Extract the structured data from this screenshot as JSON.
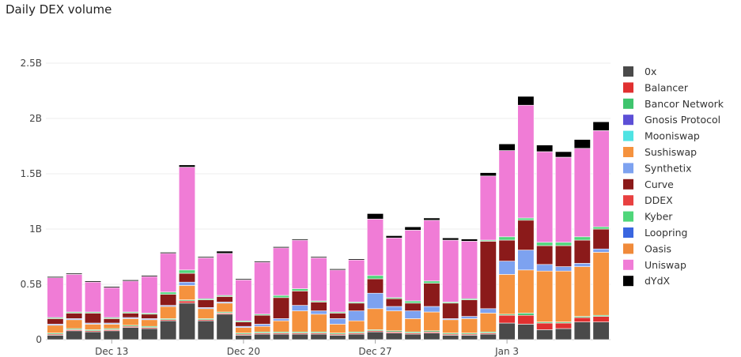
{
  "chart_data": {
    "type": "bar",
    "stacked": true,
    "title": "Daily DEX volume",
    "xlabel": "",
    "ylabel": "",
    "ylim": [
      0,
      2.5
    ],
    "y_unit": "B",
    "y_ticks": [
      {
        "value": 0,
        "label": "0"
      },
      {
        "value": 0.5,
        "label": "0.5B"
      },
      {
        "value": 1,
        "label": "1B"
      },
      {
        "value": 1.5,
        "label": "1.5B"
      },
      {
        "value": 2,
        "label": "2B"
      },
      {
        "value": 2.5,
        "label": "2.5B"
      }
    ],
    "x_ticks": [
      {
        "index": 3,
        "label": "Dec 13"
      },
      {
        "index": 10,
        "label": "Dec 20"
      },
      {
        "index": 17,
        "label": "Dec 27"
      },
      {
        "index": 24,
        "label": "Jan 3"
      }
    ],
    "categories": [
      "Dec 10",
      "Dec 11",
      "Dec 12",
      "Dec 13",
      "Dec 14",
      "Dec 15",
      "Dec 16",
      "Dec 17",
      "Dec 18",
      "Dec 19",
      "Dec 20",
      "Dec 21",
      "Dec 22",
      "Dec 23",
      "Dec 24",
      "Dec 25",
      "Dec 26",
      "Dec 27",
      "Dec 28",
      "Dec 29",
      "Dec 30",
      "Dec 31",
      "Jan 1",
      "Jan 2",
      "Jan 3",
      "Jan 4",
      "Jan 5",
      "Jan 6",
      "Jan 7",
      "Jan 8"
    ],
    "legend_position": "right",
    "series": [
      {
        "name": "0x",
        "color": "#4a4a4a",
        "values": [
          0.04,
          0.08,
          0.07,
          0.08,
          0.11,
          0.1,
          0.17,
          0.33,
          0.17,
          0.23,
          0.04,
          0.05,
          0.05,
          0.05,
          0.05,
          0.04,
          0.05,
          0.07,
          0.06,
          0.05,
          0.06,
          0.04,
          0.04,
          0.05,
          0.15,
          0.14,
          0.09,
          0.1,
          0.16,
          0.16
        ]
      },
      {
        "name": "Balancer",
        "color": "#e03030",
        "values": [
          0.01,
          0.01,
          0.01,
          0.01,
          0.01,
          0.01,
          0.01,
          0.02,
          0.01,
          0.01,
          0.01,
          0.01,
          0.01,
          0.01,
          0.01,
          0.01,
          0.01,
          0.01,
          0.01,
          0.01,
          0.01,
          0.01,
          0.01,
          0.01,
          0.07,
          0.08,
          0.06,
          0.05,
          0.04,
          0.05
        ]
      },
      {
        "name": "Bancor Network",
        "color": "#3ec46d",
        "values": [
          0.01,
          0.01,
          0.01,
          0.01,
          0.01,
          0.01,
          0.01,
          0.01,
          0.01,
          0.01,
          0.01,
          0.01,
          0.01,
          0.01,
          0.01,
          0.01,
          0.01,
          0.01,
          0.01,
          0.01,
          0.01,
          0.01,
          0.01,
          0.01,
          0.01,
          0.02,
          0.01,
          0.01,
          0.01,
          0.01
        ]
      },
      {
        "name": "Gnosis Protocol",
        "color": "#5c4fd6",
        "values": [
          0,
          0,
          0,
          0,
          0,
          0,
          0,
          0,
          0,
          0,
          0,
          0,
          0,
          0,
          0,
          0,
          0,
          0,
          0,
          0,
          0,
          0,
          0,
          0,
          0,
          0,
          0,
          0,
          0,
          0
        ]
      },
      {
        "name": "Mooniswap",
        "color": "#4fe3e3",
        "values": [
          0,
          0,
          0,
          0,
          0,
          0,
          0,
          0,
          0,
          0,
          0,
          0,
          0,
          0,
          0,
          0,
          0,
          0,
          0,
          0,
          0,
          0,
          0,
          0,
          0,
          0,
          0,
          0,
          0,
          0
        ]
      },
      {
        "name": "Sushiswap",
        "color": "#f5923e",
        "values": [
          0.07,
          0.08,
          0.05,
          0.04,
          0.06,
          0.06,
          0.11,
          0.13,
          0.09,
          0.08,
          0.05,
          0.05,
          0.1,
          0.19,
          0.16,
          0.08,
          0.1,
          0.19,
          0.18,
          0.12,
          0.17,
          0.12,
          0.13,
          0.17,
          0.36,
          0.39,
          0.46,
          0.46,
          0.45,
          0.57
        ]
      },
      {
        "name": "Synthetix",
        "color": "#7da2f0",
        "values": [
          0.01,
          0.01,
          0.01,
          0.01,
          0.01,
          0.01,
          0.01,
          0.03,
          0.01,
          0.01,
          0.01,
          0.02,
          0.02,
          0.05,
          0.03,
          0.05,
          0.09,
          0.14,
          0.04,
          0.07,
          0.05,
          0.01,
          0.02,
          0.04,
          0.12,
          0.18,
          0.06,
          0.04,
          0.03,
          0.03
        ]
      },
      {
        "name": "Curve",
        "color": "#8b1a1a",
        "values": [
          0.05,
          0.05,
          0.09,
          0.04,
          0.04,
          0.04,
          0.1,
          0.08,
          0.07,
          0.05,
          0.04,
          0.08,
          0.19,
          0.13,
          0.08,
          0.05,
          0.07,
          0.13,
          0.07,
          0.07,
          0.21,
          0.14,
          0.15,
          0.61,
          0.19,
          0.27,
          0.17,
          0.19,
          0.21,
          0.18
        ]
      },
      {
        "name": "DDEX",
        "color": "#e84040",
        "values": [
          0,
          0,
          0,
          0,
          0,
          0,
          0,
          0,
          0,
          0,
          0,
          0,
          0,
          0,
          0,
          0,
          0,
          0,
          0,
          0,
          0,
          0,
          0,
          0,
          0,
          0,
          0,
          0,
          0,
          0
        ]
      },
      {
        "name": "Kyber",
        "color": "#4fd67a",
        "values": [
          0.01,
          0.01,
          0.01,
          0.01,
          0.01,
          0.01,
          0.02,
          0.03,
          0.01,
          0.01,
          0.01,
          0.01,
          0.02,
          0.02,
          0.01,
          0.01,
          0.01,
          0.03,
          0.01,
          0.02,
          0.02,
          0.01,
          0.01,
          0.01,
          0.03,
          0.02,
          0.03,
          0.03,
          0.03,
          0.02
        ]
      },
      {
        "name": "Loopring",
        "color": "#3a66e0",
        "values": [
          0,
          0,
          0,
          0,
          0,
          0,
          0,
          0,
          0,
          0,
          0,
          0,
          0,
          0,
          0,
          0,
          0,
          0,
          0,
          0,
          0,
          0,
          0,
          0,
          0,
          0,
          0,
          0,
          0,
          0
        ]
      },
      {
        "name": "Oasis",
        "color": "#f08a3a",
        "values": [
          0,
          0,
          0,
          0,
          0,
          0,
          0,
          0,
          0,
          0,
          0,
          0,
          0,
          0,
          0,
          0,
          0,
          0,
          0,
          0,
          0,
          0,
          0,
          0,
          0,
          0,
          0,
          0,
          0,
          0
        ]
      },
      {
        "name": "Uniswap",
        "color": "#f07cd6",
        "values": [
          0.36,
          0.34,
          0.27,
          0.27,
          0.28,
          0.33,
          0.35,
          0.93,
          0.37,
          0.38,
          0.37,
          0.47,
          0.43,
          0.44,
          0.39,
          0.38,
          0.38,
          0.51,
          0.54,
          0.64,
          0.55,
          0.56,
          0.52,
          0.58,
          0.78,
          1.02,
          0.82,
          0.77,
          0.8,
          0.87
        ]
      },
      {
        "name": "dYdX",
        "color": "#000000",
        "values": [
          0.01,
          0.01,
          0.01,
          0.01,
          0.01,
          0.01,
          0.01,
          0.02,
          0.01,
          0.02,
          0.01,
          0.01,
          0.01,
          0.01,
          0.01,
          0.01,
          0.01,
          0.05,
          0.02,
          0.03,
          0.02,
          0.02,
          0.02,
          0.03,
          0.06,
          0.08,
          0.06,
          0.05,
          0.08,
          0.08
        ]
      }
    ]
  }
}
